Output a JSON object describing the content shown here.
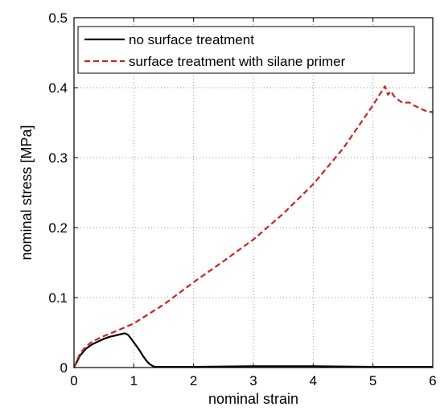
{
  "chart_data": {
    "type": "line",
    "xlabel": "nominal strain",
    "ylabel": "nominal stress [MPa]",
    "xlim": [
      0,
      6
    ],
    "ylim": [
      0,
      0.5
    ],
    "xticks": [
      "0",
      "1",
      "2",
      "3",
      "4",
      "5",
      "6"
    ],
    "yticks": [
      "0",
      "0.1",
      "0.2",
      "0.3",
      "0.4",
      "0.5"
    ],
    "grid": true,
    "legend_position": "top-left",
    "series": [
      {
        "name": "no surface treatment",
        "color": "#000000",
        "style": "solid",
        "x": [
          0,
          0.1,
          0.2,
          0.3,
          0.4,
          0.5,
          0.6,
          0.7,
          0.8,
          0.85,
          0.9,
          0.95,
          1.0,
          1.05,
          1.1,
          1.15,
          1.2,
          1.25,
          1.3,
          1.35,
          1.4,
          2.0,
          3.0,
          4.0,
          5.0,
          6.0
        ],
        "y": [
          0,
          0.017,
          0.027,
          0.033,
          0.037,
          0.041,
          0.044,
          0.046,
          0.048,
          0.049,
          0.047,
          0.042,
          0.036,
          0.03,
          0.024,
          0.017,
          0.011,
          0.006,
          0.003,
          0.001,
          0.001,
          0.001,
          0.002,
          0.002,
          0.001,
          0.001
        ]
      },
      {
        "name": "surface treatment with silane primer",
        "color": "#d42020",
        "style": "dashed",
        "x": [
          0,
          0.1,
          0.2,
          0.3,
          0.5,
          0.7,
          1.0,
          1.5,
          2.0,
          2.5,
          3.0,
          3.5,
          4.0,
          4.5,
          5.0,
          5.2,
          5.25,
          5.3,
          5.35,
          5.4,
          5.5,
          5.6,
          5.7,
          5.8,
          5.9,
          6.0
        ],
        "y": [
          0,
          0.02,
          0.03,
          0.037,
          0.045,
          0.052,
          0.063,
          0.09,
          0.122,
          0.152,
          0.183,
          0.22,
          0.262,
          0.313,
          0.375,
          0.402,
          0.39,
          0.395,
          0.388,
          0.384,
          0.378,
          0.379,
          0.374,
          0.37,
          0.366,
          0.365
        ]
      }
    ]
  }
}
